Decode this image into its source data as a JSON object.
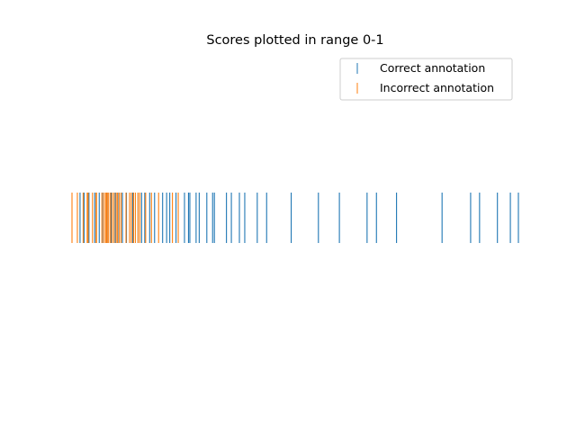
{
  "chart_data": {
    "type": "scatter",
    "title": "Scores plotted in range 0-1",
    "xlim": [
      0,
      1
    ],
    "axes_visible": false,
    "legend_position": "upper right",
    "series": [
      {
        "name": "Correct annotation",
        "color": "#1f77b4",
        "marker": "vertical-line",
        "values": [
          0.018,
          0.027,
          0.038,
          0.051,
          0.061,
          0.068,
          0.079,
          0.088,
          0.097,
          0.105,
          0.113,
          0.122,
          0.136,
          0.148,
          0.156,
          0.163,
          0.174,
          0.185,
          0.203,
          0.212,
          0.219,
          0.233,
          0.252,
          0.261,
          0.264,
          0.278,
          0.285,
          0.302,
          0.315,
          0.319,
          0.346,
          0.357,
          0.375,
          0.387,
          0.415,
          0.436,
          0.491,
          0.552,
          0.599,
          0.661,
          0.682,
          0.727,
          0.829,
          0.893,
          0.913,
          0.953,
          0.982,
          1.0
        ]
      },
      {
        "name": "Incorrect annotation",
        "color": "#ff7f0e",
        "marker": "vertical-line",
        "values": [
          0.0,
          0.012,
          0.025,
          0.034,
          0.036,
          0.046,
          0.054,
          0.055,
          0.067,
          0.071,
          0.075,
          0.077,
          0.079,
          0.082,
          0.086,
          0.09,
          0.094,
          0.099,
          0.102,
          0.106,
          0.11,
          0.121,
          0.129,
          0.133,
          0.138,
          0.142,
          0.148,
          0.152,
          0.165,
          0.178,
          0.194,
          0.225,
          0.238
        ]
      }
    ]
  }
}
